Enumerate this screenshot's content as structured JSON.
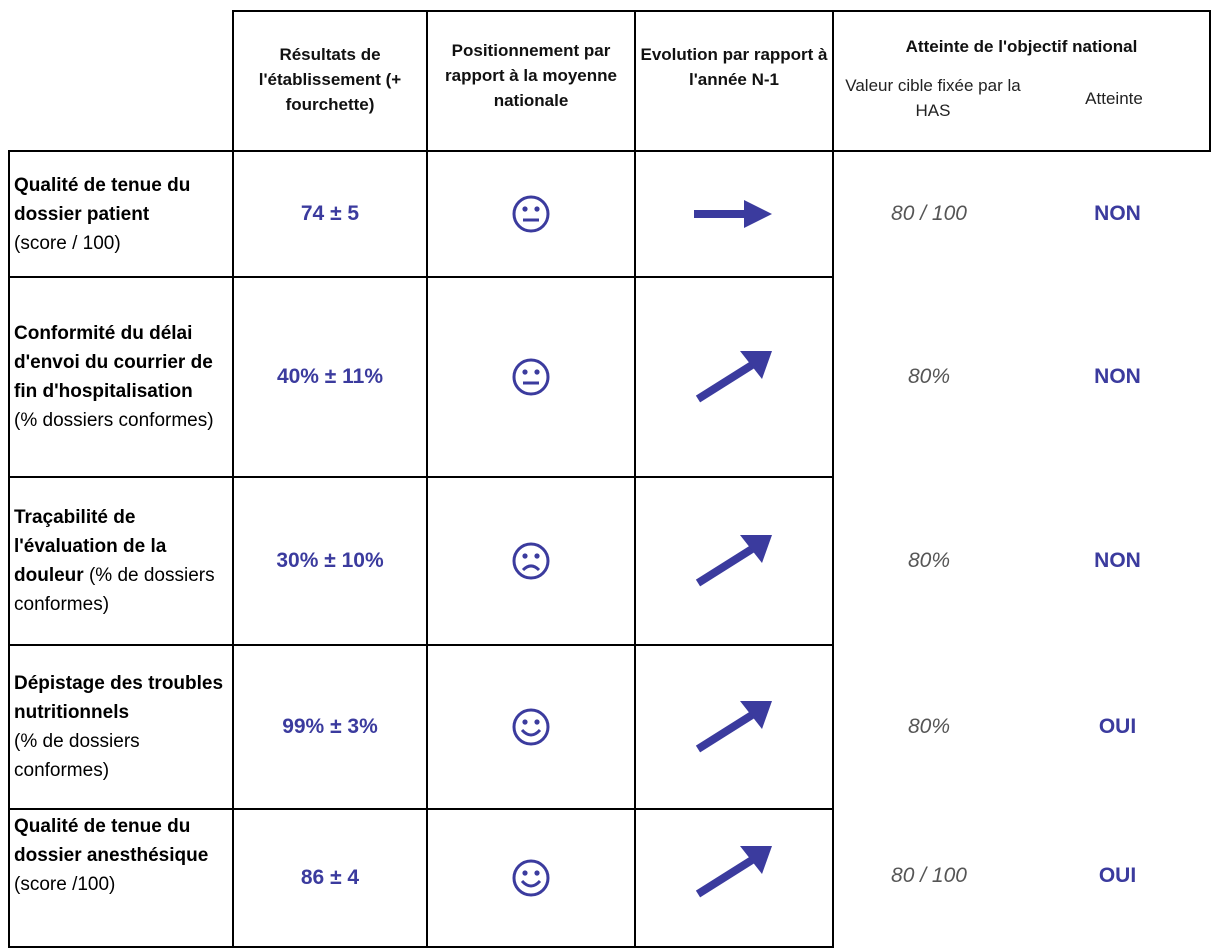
{
  "header": {
    "col_results": "Résultats de l'établissement (+ fourchette)",
    "col_position": "Positionnement par rapport à la moyenne nationale",
    "col_evolution": "Evolution par rapport à l'année N-1",
    "col_objective": "Atteinte de l'objectif national",
    "sub_target": "Valeur cible fixée par la HAS",
    "sub_reached": "Atteinte"
  },
  "colors": {
    "accent": "#3b3b9e",
    "target_text": "#555555",
    "border": "#000000"
  },
  "rows": [
    {
      "indicator": "Qualité de tenue du dossier patient",
      "unit": "(score / 100)",
      "result": "74 ± 5",
      "position_icon": "neutral-face-icon",
      "evolution_icon": "arrow-right-icon",
      "target": "80 / 100",
      "reached": "NON"
    },
    {
      "indicator": "Conformité du délai d'envoi du courrier de fin d'hospitalisation",
      "unit": "(% dossiers conformes)",
      "result": "40% ± 11%",
      "position_icon": "neutral-face-icon",
      "evolution_icon": "arrow-up-right-icon",
      "target": "80%",
      "reached": "NON"
    },
    {
      "indicator": "Traçabilité de l'évaluation de la douleur",
      "unit": "(% de dossiers conformes)",
      "result": "30% ± 10%",
      "position_icon": "sad-face-icon",
      "evolution_icon": "arrow-up-right-icon",
      "target": "80%",
      "reached": "NON"
    },
    {
      "indicator": "Dépistage des troubles nutritionnels",
      "unit": "(% de dossiers conformes)",
      "result": "99% ± 3%",
      "position_icon": "smile-face-icon",
      "evolution_icon": "arrow-up-right-icon",
      "target": "80%",
      "reached": "OUI"
    },
    {
      "indicator": "Qualité de tenue du dossier anesthésique",
      "unit": "(score /100)",
      "result": "86 ± 4",
      "position_icon": "smile-face-icon",
      "evolution_icon": "arrow-up-right-icon",
      "target": "80 / 100",
      "reached": "OUI"
    }
  ]
}
